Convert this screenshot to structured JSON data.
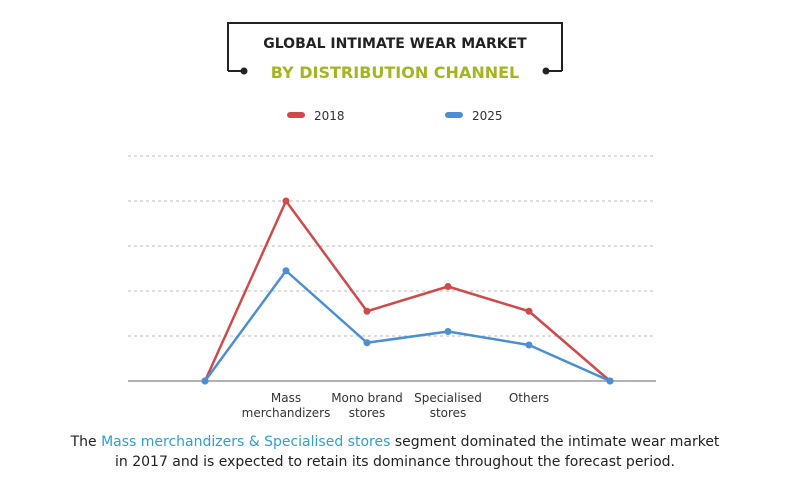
{
  "chart_data": {
    "type": "line",
    "title": "GLOBAL INTIMATE WEAR MARKET",
    "subtitle": "BY DISTRIBUTION CHANNEL",
    "categories": [
      "",
      "Mass merchandizers",
      "Mono brand stores",
      "Specialised stores",
      "Others",
      ""
    ],
    "category_lines": [
      [],
      [
        "Mass",
        "merchandizers"
      ],
      [
        "Mono brand",
        "stores"
      ],
      [
        "Specialised",
        "stores"
      ],
      [
        "Others"
      ],
      []
    ],
    "series": [
      {
        "name": "2018",
        "color": "#cf4a4a",
        "values": [
          0,
          4.0,
          1.55,
          2.1,
          1.55,
          0
        ]
      },
      {
        "name": "2025",
        "color": "#4a8fd4",
        "values": [
          0,
          2.45,
          0.85,
          1.1,
          0.8,
          0
        ]
      }
    ],
    "ylim": [
      0,
      5
    ],
    "y_gridlines": [
      1,
      2,
      3,
      4,
      5
    ],
    "grid": true,
    "grid_style": "dashed",
    "legend_position": "top",
    "xlabel": "",
    "ylabel": ""
  },
  "caption": {
    "prefix": "The ",
    "highlight": "Mass merchandizers & Specialised stores",
    "suffix": " segment dominated the intimate wear market",
    "line2": "in 2017 and is expected to retain its dominance throughout the forecast period."
  },
  "colors": {
    "title": "#222222",
    "subtitle": "#a3b523",
    "highlight": "#2e9fd8",
    "axis": "#999999",
    "grid": "#bbbbbb"
  }
}
